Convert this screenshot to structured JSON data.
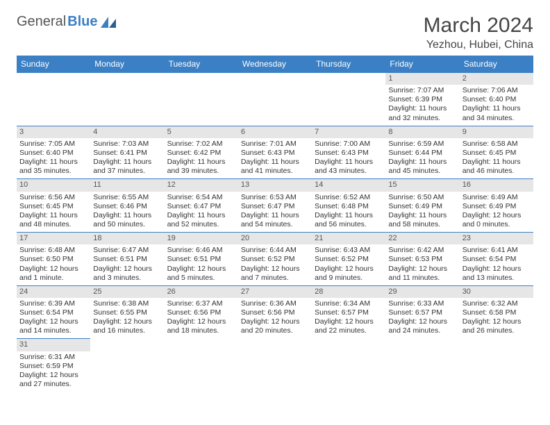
{
  "brand": {
    "part1": "General",
    "part2": "Blue"
  },
  "title": {
    "month": "March 2024",
    "location": "Yezhou, Hubei, China"
  },
  "colors": {
    "header_bg": "#3b7fc4",
    "header_fg": "#ffffff",
    "daynum_bg": "#e6e6e6",
    "rule": "#3b7fc4",
    "text": "#333333"
  },
  "layout": {
    "cols": 7,
    "rows": 6,
    "first_weekday_index": 5
  },
  "font": {
    "family": "Arial",
    "title_size_pt": 30,
    "header_size_pt": 12,
    "body_size_pt": 10.5
  },
  "weekday_headers": [
    "Sunday",
    "Monday",
    "Tuesday",
    "Wednesday",
    "Thursday",
    "Friday",
    "Saturday"
  ],
  "days": [
    {
      "n": 1,
      "sunrise": "7:07 AM",
      "sunset": "6:39 PM",
      "daylight": "11 hours and 32 minutes."
    },
    {
      "n": 2,
      "sunrise": "7:06 AM",
      "sunset": "6:40 PM",
      "daylight": "11 hours and 34 minutes."
    },
    {
      "n": 3,
      "sunrise": "7:05 AM",
      "sunset": "6:40 PM",
      "daylight": "11 hours and 35 minutes."
    },
    {
      "n": 4,
      "sunrise": "7:03 AM",
      "sunset": "6:41 PM",
      "daylight": "11 hours and 37 minutes."
    },
    {
      "n": 5,
      "sunrise": "7:02 AM",
      "sunset": "6:42 PM",
      "daylight": "11 hours and 39 minutes."
    },
    {
      "n": 6,
      "sunrise": "7:01 AM",
      "sunset": "6:43 PM",
      "daylight": "11 hours and 41 minutes."
    },
    {
      "n": 7,
      "sunrise": "7:00 AM",
      "sunset": "6:43 PM",
      "daylight": "11 hours and 43 minutes."
    },
    {
      "n": 8,
      "sunrise": "6:59 AM",
      "sunset": "6:44 PM",
      "daylight": "11 hours and 45 minutes."
    },
    {
      "n": 9,
      "sunrise": "6:58 AM",
      "sunset": "6:45 PM",
      "daylight": "11 hours and 46 minutes."
    },
    {
      "n": 10,
      "sunrise": "6:56 AM",
      "sunset": "6:45 PM",
      "daylight": "11 hours and 48 minutes."
    },
    {
      "n": 11,
      "sunrise": "6:55 AM",
      "sunset": "6:46 PM",
      "daylight": "11 hours and 50 minutes."
    },
    {
      "n": 12,
      "sunrise": "6:54 AM",
      "sunset": "6:47 PM",
      "daylight": "11 hours and 52 minutes."
    },
    {
      "n": 13,
      "sunrise": "6:53 AM",
      "sunset": "6:47 PM",
      "daylight": "11 hours and 54 minutes."
    },
    {
      "n": 14,
      "sunrise": "6:52 AM",
      "sunset": "6:48 PM",
      "daylight": "11 hours and 56 minutes."
    },
    {
      "n": 15,
      "sunrise": "6:50 AM",
      "sunset": "6:49 PM",
      "daylight": "11 hours and 58 minutes."
    },
    {
      "n": 16,
      "sunrise": "6:49 AM",
      "sunset": "6:49 PM",
      "daylight": "12 hours and 0 minutes."
    },
    {
      "n": 17,
      "sunrise": "6:48 AM",
      "sunset": "6:50 PM",
      "daylight": "12 hours and 1 minute."
    },
    {
      "n": 18,
      "sunrise": "6:47 AM",
      "sunset": "6:51 PM",
      "daylight": "12 hours and 3 minutes."
    },
    {
      "n": 19,
      "sunrise": "6:46 AM",
      "sunset": "6:51 PM",
      "daylight": "12 hours and 5 minutes."
    },
    {
      "n": 20,
      "sunrise": "6:44 AM",
      "sunset": "6:52 PM",
      "daylight": "12 hours and 7 minutes."
    },
    {
      "n": 21,
      "sunrise": "6:43 AM",
      "sunset": "6:52 PM",
      "daylight": "12 hours and 9 minutes."
    },
    {
      "n": 22,
      "sunrise": "6:42 AM",
      "sunset": "6:53 PM",
      "daylight": "12 hours and 11 minutes."
    },
    {
      "n": 23,
      "sunrise": "6:41 AM",
      "sunset": "6:54 PM",
      "daylight": "12 hours and 13 minutes."
    },
    {
      "n": 24,
      "sunrise": "6:39 AM",
      "sunset": "6:54 PM",
      "daylight": "12 hours and 14 minutes."
    },
    {
      "n": 25,
      "sunrise": "6:38 AM",
      "sunset": "6:55 PM",
      "daylight": "12 hours and 16 minutes."
    },
    {
      "n": 26,
      "sunrise": "6:37 AM",
      "sunset": "6:56 PM",
      "daylight": "12 hours and 18 minutes."
    },
    {
      "n": 27,
      "sunrise": "6:36 AM",
      "sunset": "6:56 PM",
      "daylight": "12 hours and 20 minutes."
    },
    {
      "n": 28,
      "sunrise": "6:34 AM",
      "sunset": "6:57 PM",
      "daylight": "12 hours and 22 minutes."
    },
    {
      "n": 29,
      "sunrise": "6:33 AM",
      "sunset": "6:57 PM",
      "daylight": "12 hours and 24 minutes."
    },
    {
      "n": 30,
      "sunrise": "6:32 AM",
      "sunset": "6:58 PM",
      "daylight": "12 hours and 26 minutes."
    },
    {
      "n": 31,
      "sunrise": "6:31 AM",
      "sunset": "6:59 PM",
      "daylight": "12 hours and 27 minutes."
    }
  ],
  "labels": {
    "sunrise": "Sunrise:",
    "sunset": "Sunset:",
    "daylight": "Daylight:"
  }
}
